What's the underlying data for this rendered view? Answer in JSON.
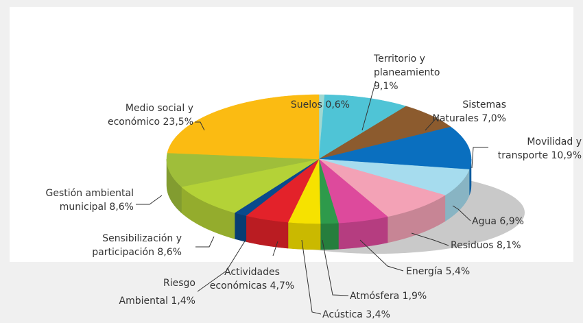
{
  "chart_data": {
    "type": "pie",
    "categories": [
      "Suelos",
      "Territorio y planeamiento",
      "Sistemas Naturales",
      "Movilidad y transporte",
      "Agua",
      "Residuos",
      "Energía",
      "Atmósfera",
      "Acústica",
      "Actividades económicas",
      "Riesgo Ambiental",
      "Sensibilización y participación",
      "Gestión ambiental municipal",
      "Medio social y económico"
    ],
    "values": [
      0.6,
      9.1,
      7.0,
      10.9,
      6.9,
      8.1,
      5.4,
      1.9,
      3.4,
      4.7,
      1.4,
      8.6,
      8.6,
      23.5
    ],
    "value_labels": [
      "0,6%",
      "9,1%",
      "7,0%",
      "10,9%",
      "6,9%",
      "8,1%",
      "5,4%",
      "1,9%",
      "3,4%",
      "4,7%",
      "1,4%",
      "8,6%",
      "8,6%",
      "23,5%"
    ],
    "colors": [
      "#9fd8d2",
      "#4fc4d6",
      "#8c5b2e",
      "#0a6fbf",
      "#a6dcee",
      "#f3a2b6",
      "#dd4a9c",
      "#2e9a4b",
      "#f6e200",
      "#e3222a",
      "#0a4a8c",
      "#b4d237",
      "#9fbe3a",
      "#fbbb12"
    ]
  }
}
